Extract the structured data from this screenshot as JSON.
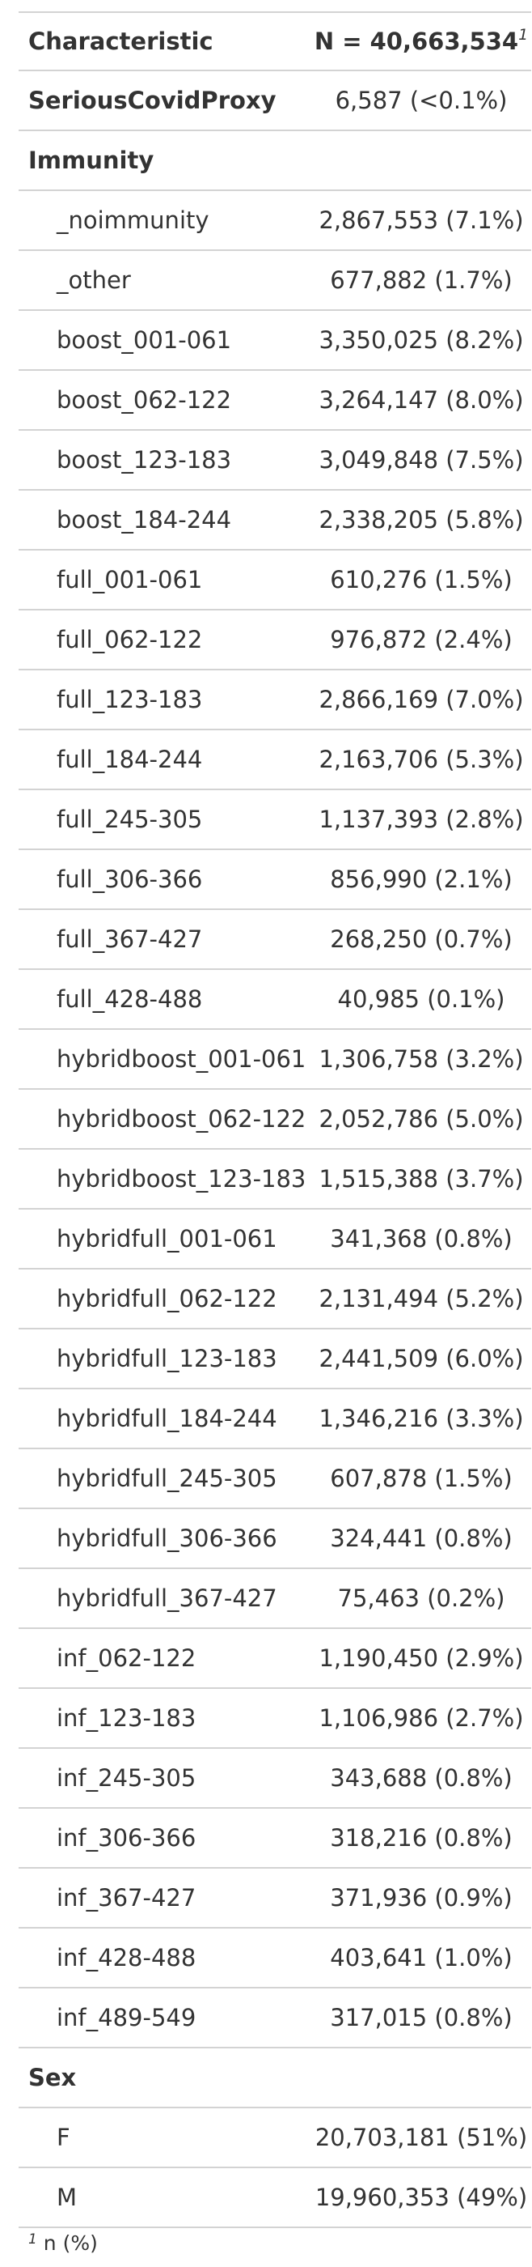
{
  "header": {
    "characteristic": "Characteristic",
    "n_label": "N = 40,663,534",
    "n_footnote_mark": "1"
  },
  "rows": [
    {
      "label": "SeriousCovidProxy",
      "value": "6,587 (<0.1%)",
      "kind": "bold"
    },
    {
      "label": "Immunity",
      "value": "",
      "kind": "bold"
    },
    {
      "label": "_noimmunity",
      "value": "2,867,553 (7.1%)",
      "kind": "indent"
    },
    {
      "label": "_other",
      "value": "677,882 (1.7%)",
      "kind": "indent"
    },
    {
      "label": "boost_001-061",
      "value": "3,350,025 (8.2%)",
      "kind": "indent"
    },
    {
      "label": "boost_062-122",
      "value": "3,264,147 (8.0%)",
      "kind": "indent"
    },
    {
      "label": "boost_123-183",
      "value": "3,049,848 (7.5%)",
      "kind": "indent"
    },
    {
      "label": "boost_184-244",
      "value": "2,338,205 (5.8%)",
      "kind": "indent"
    },
    {
      "label": "full_001-061",
      "value": "610,276 (1.5%)",
      "kind": "indent"
    },
    {
      "label": "full_062-122",
      "value": "976,872 (2.4%)",
      "kind": "indent"
    },
    {
      "label": "full_123-183",
      "value": "2,866,169 (7.0%)",
      "kind": "indent"
    },
    {
      "label": "full_184-244",
      "value": "2,163,706 (5.3%)",
      "kind": "indent"
    },
    {
      "label": "full_245-305",
      "value": "1,137,393 (2.8%)",
      "kind": "indent"
    },
    {
      "label": "full_306-366",
      "value": "856,990 (2.1%)",
      "kind": "indent"
    },
    {
      "label": "full_367-427",
      "value": "268,250 (0.7%)",
      "kind": "indent"
    },
    {
      "label": "full_428-488",
      "value": "40,985 (0.1%)",
      "kind": "indent"
    },
    {
      "label": "hybridboost_001-061",
      "value": "1,306,758 (3.2%)",
      "kind": "indent"
    },
    {
      "label": "hybridboost_062-122",
      "value": "2,052,786 (5.0%)",
      "kind": "indent"
    },
    {
      "label": "hybridboost_123-183",
      "value": "1,515,388 (3.7%)",
      "kind": "indent"
    },
    {
      "label": "hybridfull_001-061",
      "value": "341,368 (0.8%)",
      "kind": "indent"
    },
    {
      "label": "hybridfull_062-122",
      "value": "2,131,494 (5.2%)",
      "kind": "indent"
    },
    {
      "label": "hybridfull_123-183",
      "value": "2,441,509 (6.0%)",
      "kind": "indent"
    },
    {
      "label": "hybridfull_184-244",
      "value": "1,346,216 (3.3%)",
      "kind": "indent"
    },
    {
      "label": "hybridfull_245-305",
      "value": "607,878 (1.5%)",
      "kind": "indent"
    },
    {
      "label": "hybridfull_306-366",
      "value": "324,441 (0.8%)",
      "kind": "indent"
    },
    {
      "label": "hybridfull_367-427",
      "value": "75,463 (0.2%)",
      "kind": "indent"
    },
    {
      "label": "inf_062-122",
      "value": "1,190,450 (2.9%)",
      "kind": "indent"
    },
    {
      "label": "inf_123-183",
      "value": "1,106,986 (2.7%)",
      "kind": "indent"
    },
    {
      "label": "inf_245-305",
      "value": "343,688 (0.8%)",
      "kind": "indent"
    },
    {
      "label": "inf_306-366",
      "value": "318,216 (0.8%)",
      "kind": "indent"
    },
    {
      "label": "inf_367-427",
      "value": "371,936 (0.9%)",
      "kind": "indent"
    },
    {
      "label": "inf_428-488",
      "value": "403,641 (1.0%)",
      "kind": "indent"
    },
    {
      "label": "inf_489-549",
      "value": "317,015 (0.8%)",
      "kind": "indent"
    },
    {
      "label": "Sex",
      "value": "",
      "kind": "bold"
    },
    {
      "label": "F",
      "value": "20,703,181 (51%)",
      "kind": "indent"
    },
    {
      "label": "M",
      "value": "19,960,353 (49%)",
      "kind": "indent"
    }
  ],
  "footnote": {
    "mark": "1",
    "text": " n (%)"
  }
}
